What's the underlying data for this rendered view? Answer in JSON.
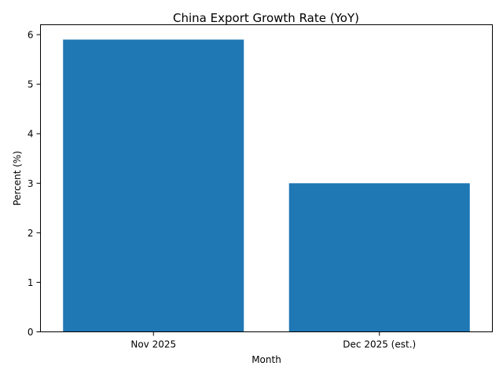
{
  "chart_data": {
    "type": "bar",
    "title": "China Export Growth Rate (YoY)",
    "xlabel": "Month",
    "ylabel": "Percent (%)",
    "categories": [
      "Nov 2025",
      "Dec 2025 (est.)"
    ],
    "values": [
      5.9,
      3.0
    ],
    "ylim": [
      0,
      6.2
    ],
    "yticks": [
      0,
      1,
      2,
      3,
      4,
      5,
      6
    ],
    "grid": false,
    "bar_color": "#1f77b4"
  }
}
